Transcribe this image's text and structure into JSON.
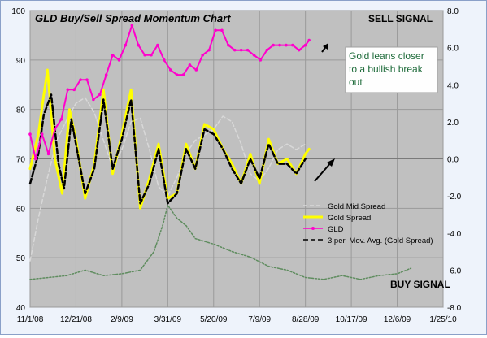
{
  "chart_data": {
    "type": "line",
    "title": "GLD Buy/Sell Spread Momentum Chart",
    "x_ticks": [
      "11/1/08",
      "12/21/08",
      "2/9/09",
      "3/31/09",
      "5/20/09",
      "7/9/09",
      "8/28/09",
      "10/17/09",
      "12/6/09",
      "1/25/10"
    ],
    "y_left": {
      "min": 40,
      "max": 100,
      "ticks": [
        40,
        50,
        60,
        70,
        80,
        90,
        100
      ]
    },
    "y_right": {
      "min": -8,
      "max": 8,
      "ticks": [
        "-8.0",
        "-6.0",
        "-4.0",
        "-2.0",
        "0.0",
        "2.0",
        "4.0",
        "6.0",
        "8.0"
      ]
    },
    "grid": true,
    "legend_position": "right",
    "series": [
      {
        "name": "Gold Mid Spread",
        "axis": "right",
        "color": "#d8d8d8",
        "dash": "5,3",
        "points": [
          [
            "11/1/08",
            -5.5
          ],
          [
            "11/10/08",
            -3.2
          ],
          [
            "11/20/08",
            -1.0
          ],
          [
            "11/30/08",
            1.0
          ],
          [
            "12/10/08",
            2.0
          ],
          [
            "12/21/08",
            3.0
          ],
          [
            "12/31/08",
            3.3
          ],
          [
            "1/10/09",
            2.5
          ],
          [
            "1/20/09",
            1.0
          ],
          [
            "1/30/09",
            -0.5
          ],
          [
            "2/9/09",
            0.5
          ],
          [
            "2/19/09",
            2.0
          ],
          [
            "3/1/09",
            2.2
          ],
          [
            "3/11/09",
            0.5
          ],
          [
            "3/21/09",
            -1.5
          ],
          [
            "3/31/09",
            -2.0
          ],
          [
            "4/10/09",
            -1.0
          ],
          [
            "4/20/09",
            0.3
          ],
          [
            "4/30/09",
            1.0
          ],
          [
            "5/10/09",
            1.3
          ],
          [
            "5/20/09",
            1.6
          ],
          [
            "5/30/09",
            2.3
          ],
          [
            "6/9/09",
            2.0
          ],
          [
            "6/19/09",
            0.8
          ],
          [
            "6/29/09",
            -0.8
          ],
          [
            "7/9/09",
            -1.2
          ],
          [
            "7/19/09",
            -0.5
          ],
          [
            "7/29/09",
            0.5
          ],
          [
            "8/8/09",
            0.8
          ],
          [
            "8/18/09",
            0.5
          ],
          [
            "8/28/09",
            0.8
          ]
        ]
      },
      {
        "name": "Gold  Spread",
        "axis": "left",
        "color": "#ffff00",
        "points": [
          [
            "11/1/08",
            68
          ],
          [
            "11/10/08",
            75
          ],
          [
            "11/16/08",
            83
          ],
          [
            "11/20/08",
            88
          ],
          [
            "11/28/08",
            70
          ],
          [
            "12/6/08",
            63
          ],
          [
            "12/14/08",
            80
          ],
          [
            "12/21/08",
            74
          ],
          [
            "12/31/08",
            62
          ],
          [
            "1/10/09",
            69
          ],
          [
            "1/20/09",
            84
          ],
          [
            "1/30/09",
            67
          ],
          [
            "2/9/09",
            75
          ],
          [
            "2/19/09",
            84
          ],
          [
            "3/1/09",
            60
          ],
          [
            "3/11/09",
            66
          ],
          [
            "3/21/09",
            73
          ],
          [
            "3/31/09",
            62
          ],
          [
            "4/10/09",
            63
          ],
          [
            "4/20/09",
            73
          ],
          [
            "4/30/09",
            68
          ],
          [
            "5/10/09",
            77
          ],
          [
            "5/20/09",
            76
          ],
          [
            "5/30/09",
            72
          ],
          [
            "6/9/09",
            69
          ],
          [
            "6/19/09",
            65
          ],
          [
            "6/29/09",
            71
          ],
          [
            "7/9/09",
            65
          ],
          [
            "7/19/09",
            74
          ],
          [
            "7/29/09",
            69
          ],
          [
            "8/8/09",
            70
          ],
          [
            "8/18/09",
            67
          ],
          [
            "8/28/09",
            71
          ],
          [
            "9/1/09",
            72
          ]
        ]
      },
      {
        "name": "GLD",
        "axis": "left",
        "color": "#ff00cc",
        "markers": true,
        "points": [
          [
            "11/1/08",
            75
          ],
          [
            "11/7/08",
            70
          ],
          [
            "11/14/08",
            75
          ],
          [
            "11/21/08",
            71
          ],
          [
            "11/28/08",
            76
          ],
          [
            "12/5/08",
            78
          ],
          [
            "12/12/08",
            84
          ],
          [
            "12/19/08",
            84
          ],
          [
            "12/26/08",
            86
          ],
          [
            "1/2/09",
            86
          ],
          [
            "1/9/09",
            82
          ],
          [
            "1/16/09",
            83
          ],
          [
            "1/23/09",
            87
          ],
          [
            "1/30/09",
            91
          ],
          [
            "2/6/09",
            90
          ],
          [
            "2/13/09",
            93
          ],
          [
            "2/20/09",
            97
          ],
          [
            "2/27/09",
            93
          ],
          [
            "3/6/09",
            91
          ],
          [
            "3/13/09",
            91
          ],
          [
            "3/20/09",
            93
          ],
          [
            "3/27/09",
            90
          ],
          [
            "4/3/09",
            88
          ],
          [
            "4/10/09",
            87
          ],
          [
            "4/17/09",
            87
          ],
          [
            "4/24/09",
            89
          ],
          [
            "5/1/09",
            88
          ],
          [
            "5/8/09",
            91
          ],
          [
            "5/15/09",
            92
          ],
          [
            "5/22/09",
            96
          ],
          [
            "5/29/09",
            96
          ],
          [
            "6/5/09",
            93
          ],
          [
            "6/12/09",
            92
          ],
          [
            "6/19/09",
            92
          ],
          [
            "6/26/09",
            92
          ],
          [
            "7/3/09",
            91
          ],
          [
            "7/10/09",
            90
          ],
          [
            "7/17/09",
            92
          ],
          [
            "7/24/09",
            93
          ],
          [
            "7/31/09",
            93
          ],
          [
            "8/7/09",
            93
          ],
          [
            "8/14/09",
            93
          ],
          [
            "8/21/09",
            92
          ],
          [
            "8/28/09",
            93
          ],
          [
            "9/1/09",
            94
          ]
        ]
      },
      {
        "name": "3 per. Mov. Avg. (Gold  Spread)",
        "axis": "left",
        "color": "#000000",
        "dash": "6,3",
        "points": [
          [
            "11/1/08",
            65
          ],
          [
            "11/10/08",
            71
          ],
          [
            "11/16/08",
            79
          ],
          [
            "11/24/08",
            83
          ],
          [
            "12/2/08",
            69
          ],
          [
            "12/8/08",
            64
          ],
          [
            "12/16/08",
            78
          ],
          [
            "12/21/08",
            73
          ],
          [
            "12/31/08",
            63
          ],
          [
            "1/10/09",
            68
          ],
          [
            "1/20/09",
            82
          ],
          [
            "1/30/09",
            68
          ],
          [
            "2/9/09",
            74
          ],
          [
            "2/19/09",
            82
          ],
          [
            "3/1/09",
            61
          ],
          [
            "3/11/09",
            65
          ],
          [
            "3/21/09",
            72
          ],
          [
            "3/31/09",
            61
          ],
          [
            "4/10/09",
            63
          ],
          [
            "4/20/09",
            72
          ],
          [
            "4/30/09",
            68
          ],
          [
            "5/10/09",
            76
          ],
          [
            "5/20/09",
            75
          ],
          [
            "5/30/09",
            72
          ],
          [
            "6/9/09",
            68
          ],
          [
            "6/19/09",
            65
          ],
          [
            "6/29/09",
            70
          ],
          [
            "7/9/09",
            66
          ],
          [
            "7/19/09",
            73
          ],
          [
            "7/29/09",
            69
          ],
          [
            "8/8/09",
            69
          ],
          [
            "8/18/09",
            67
          ],
          [
            "8/28/09",
            70
          ]
        ]
      },
      {
        "name": "",
        "axis": "right",
        "color": "#5e8c5e",
        "dash": "2,2",
        "points": [
          [
            "11/1/08",
            -6.5
          ],
          [
            "11/21/08",
            -6.4
          ],
          [
            "12/11/08",
            -6.3
          ],
          [
            "12/31/08",
            -6.0
          ],
          [
            "1/20/09",
            -6.3
          ],
          [
            "2/9/09",
            -6.2
          ],
          [
            "3/1/09",
            -6.0
          ],
          [
            "3/16/09",
            -5.0
          ],
          [
            "3/26/09",
            -3.5
          ],
          [
            "3/31/09",
            -2.5
          ],
          [
            "4/10/09",
            -3.2
          ],
          [
            "4/20/09",
            -3.6
          ],
          [
            "4/30/09",
            -4.3
          ],
          [
            "5/20/09",
            -4.6
          ],
          [
            "6/9/09",
            -5.0
          ],
          [
            "6/29/09",
            -5.3
          ],
          [
            "7/19/09",
            -5.8
          ],
          [
            "8/8/09",
            -6.0
          ],
          [
            "8/28/09",
            -6.4
          ],
          [
            "9/17/09",
            -6.5
          ],
          [
            "10/7/09",
            -6.3
          ],
          [
            "10/27/09",
            -6.5
          ],
          [
            "11/16/09",
            -6.3
          ],
          [
            "12/6/09",
            -6.2
          ],
          [
            "12/21/09",
            -5.9
          ]
        ]
      }
    ],
    "annotations": [
      "SELL SIGNAL",
      "BUY SIGNAL",
      "Gold leans closer to a bullish break out"
    ]
  },
  "labels": {
    "title": "GLD Buy/Sell Spread Momentum Chart",
    "sell": "SELL SIGNAL",
    "buy": "BUY SIGNAL",
    "note_lines": [
      "Gold leans closer",
      "to a bullish break",
      "out"
    ]
  },
  "colors": {
    "plot_bg": "#c0c0c0",
    "note_bg": "#fefefe",
    "note_text": "#1e6b3a"
  }
}
